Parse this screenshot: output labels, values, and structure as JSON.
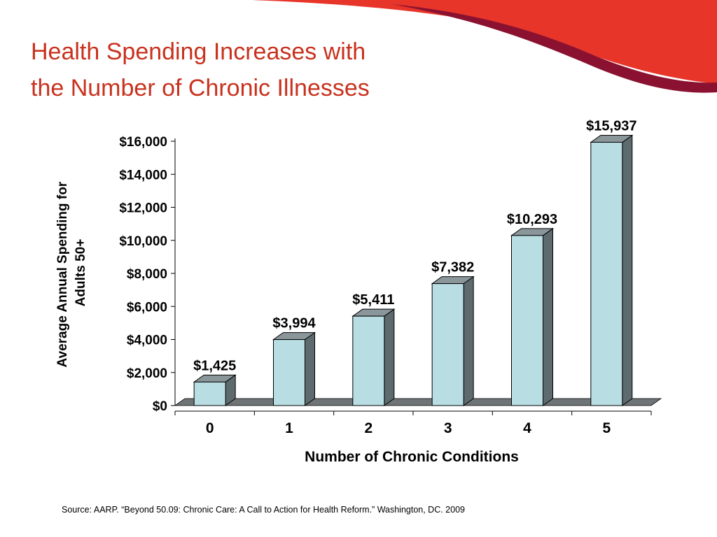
{
  "slide": {
    "title_line1": "Health Spending Increases with",
    "title_line2": "the Number of Chronic Illnesses",
    "source": "Source: AARP. “Beyond 50.09: Chronic Care: A Call to Action for Health Reform.” Washington, DC. 2009"
  },
  "colors": {
    "title": "#c8321e",
    "swoosh_red": "#e8352a",
    "swoosh_dark": "#8a1230",
    "bar_front": "#b8dde3",
    "bar_side": "#5e6b6e",
    "bar_top": "#8a9699",
    "floor": "#6f7476"
  },
  "chart_data": {
    "type": "bar",
    "style": "3d",
    "categories": [
      "0",
      "1",
      "2",
      "3",
      "4",
      "5"
    ],
    "values": [
      1425,
      3994,
      5411,
      7382,
      10293,
      15937
    ],
    "value_labels": [
      "$1,425",
      "$3,994",
      "$5,411",
      "$7,382",
      "$10,293",
      "$15,937"
    ],
    "ylim": [
      0,
      16000
    ],
    "yticks": [
      0,
      2000,
      4000,
      6000,
      8000,
      10000,
      12000,
      14000,
      16000
    ],
    "ytick_labels": [
      "$0",
      "$2,000",
      "$4,000",
      "$6,000",
      "$8,000",
      "$10,000",
      "$12,000",
      "$14,000",
      "$16,000"
    ],
    "xlabel": "Number of Chronic Conditions",
    "ylabel_line1": "Average Annual Spending for",
    "ylabel_line2": "Adults 50+",
    "grid": false,
    "legend": "none"
  }
}
